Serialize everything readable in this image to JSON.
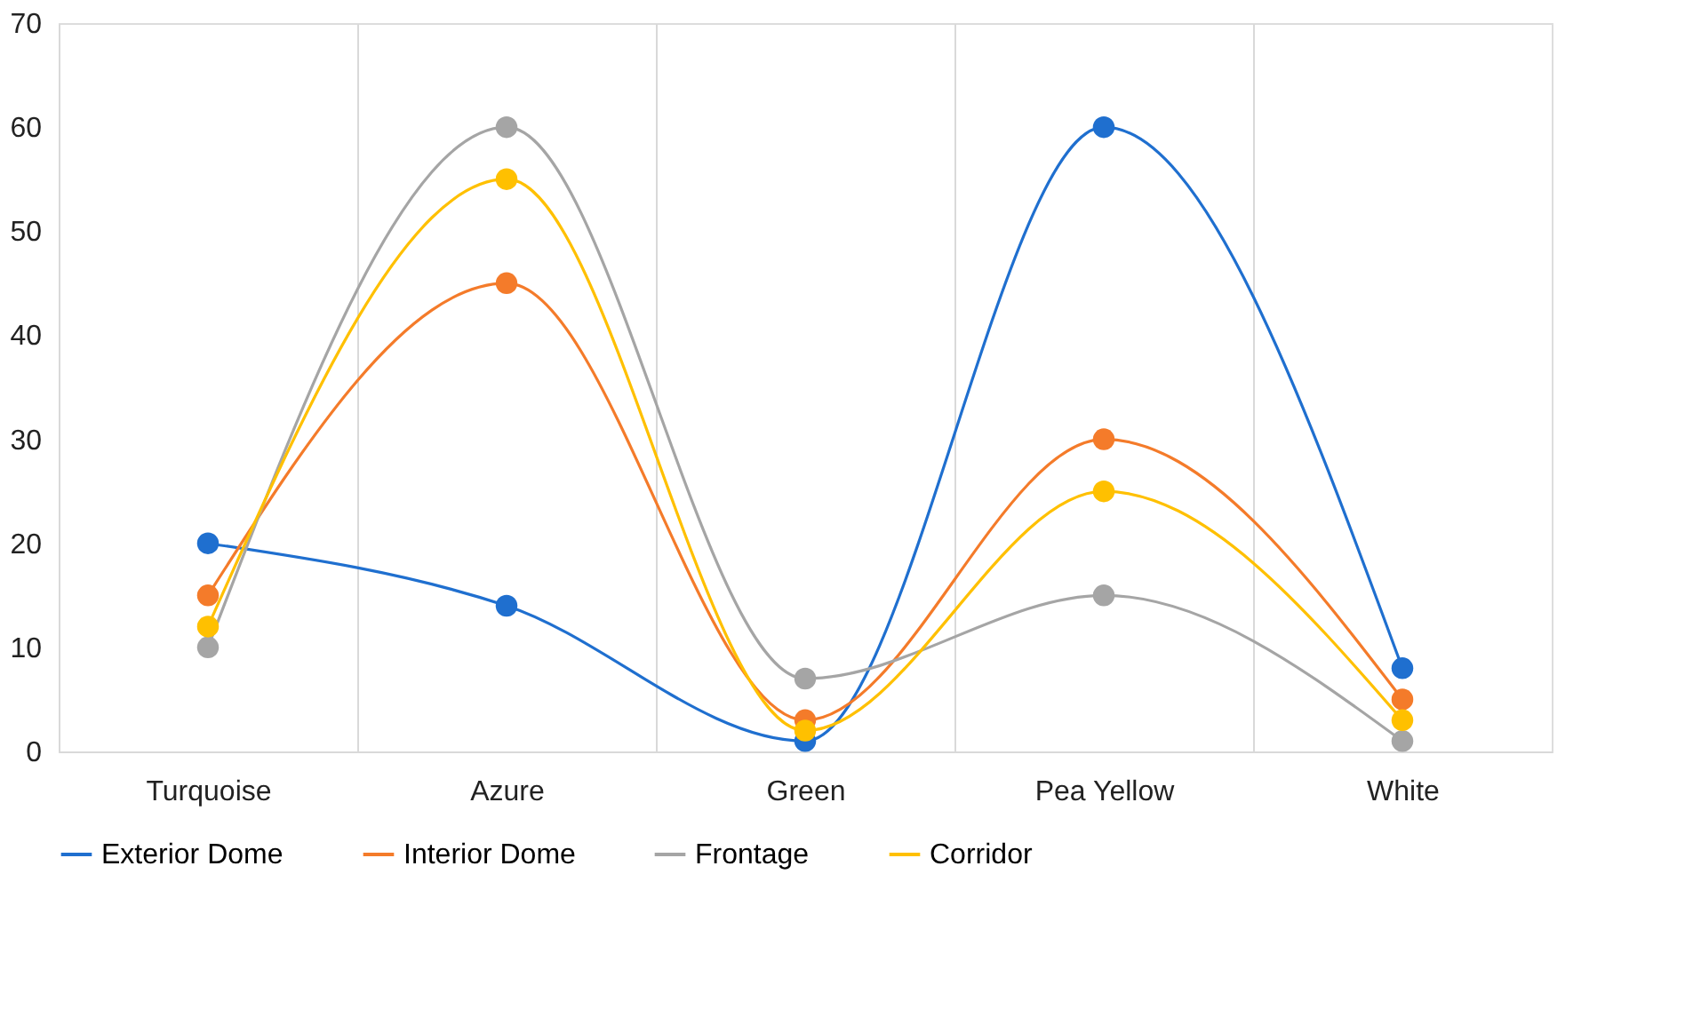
{
  "chart_data": {
    "type": "line",
    "categories": [
      "Turquoise",
      "Azure",
      "Green",
      "Pea Yellow",
      "White"
    ],
    "series": [
      {
        "name": "Exterior Dome",
        "color": "#1f6fcf",
        "values": [
          20,
          14,
          1,
          60,
          8
        ]
      },
      {
        "name": "Interior Dome",
        "color": "#f47b2a",
        "values": [
          15,
          45,
          3,
          30,
          5
        ]
      },
      {
        "name": "Frontage",
        "color": "#a5a5a5",
        "values": [
          10,
          60,
          7,
          15,
          1
        ]
      },
      {
        "name": "Corridor",
        "color": "#ffc000",
        "values": [
          12,
          55,
          2,
          25,
          3
        ]
      }
    ],
    "ylim": [
      0,
      70
    ],
    "yticks": [
      0,
      10,
      20,
      30,
      40,
      50,
      60,
      70
    ],
    "grid": "x",
    "legend": "bottom",
    "marker": "circle",
    "line_style": "solid"
  }
}
